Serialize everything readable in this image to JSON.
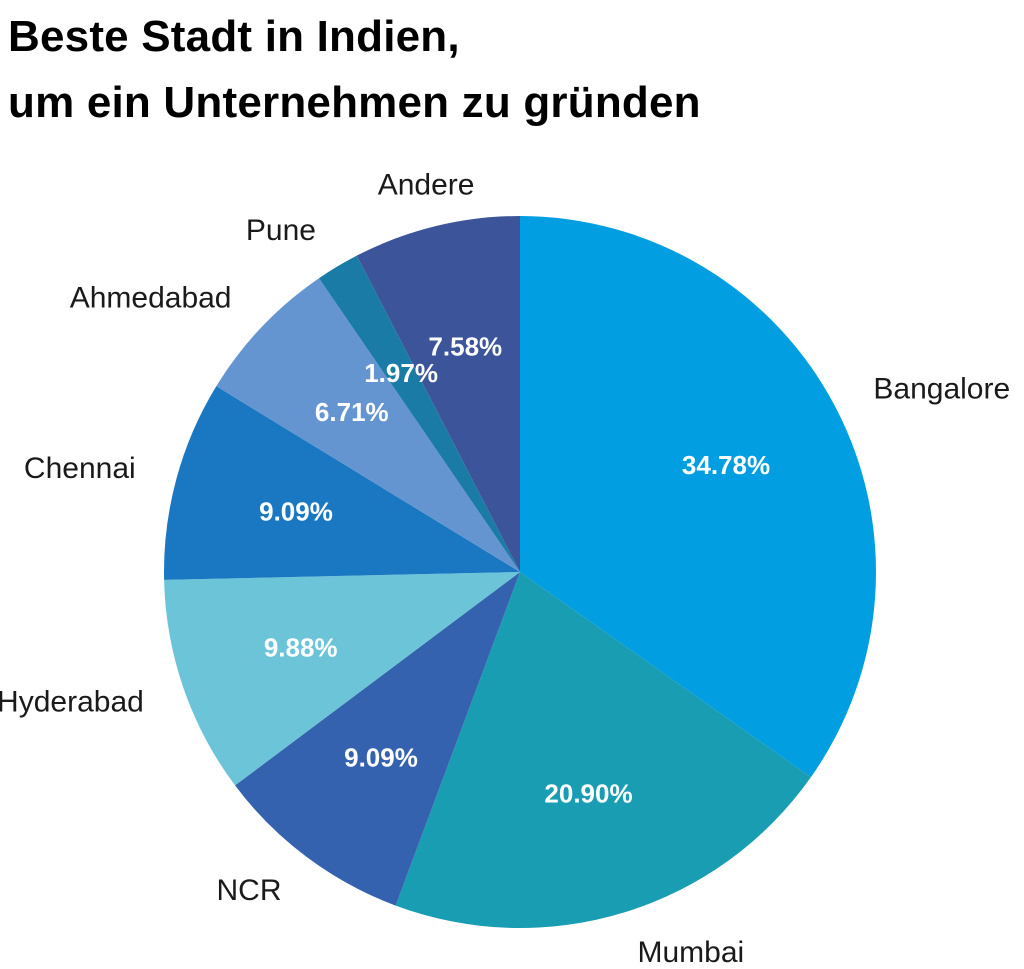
{
  "title_lines": [
    "Beste Stadt in Indien,",
    "um ein Unternehmen zu gründen"
  ],
  "chart_data": {
    "type": "pie",
    "title": "Beste Stadt in Indien, um ein Unternehmen zu gründen",
    "categories": [
      "Bangalore",
      "Mumbai",
      "NCR",
      "Hyderabad",
      "Chennai",
      "Ahmedabad",
      "Pune",
      "Andere"
    ],
    "values": [
      34.78,
      20.9,
      9.09,
      9.88,
      9.09,
      6.71,
      1.97,
      7.58
    ],
    "value_labels": [
      "34.78%",
      "20.90%",
      "9.09%",
      "9.88%",
      "9.09%",
      "6.71%",
      "1.97%",
      "7.58%"
    ],
    "colors": [
      "#019fe2",
      "#189db3",
      "#3562ae",
      "#6cc4d8",
      "#1a78c2",
      "#6495d0",
      "#1a7ba6",
      "#3c5499"
    ],
    "start": "12 o'clock",
    "direction": "clockwise"
  }
}
